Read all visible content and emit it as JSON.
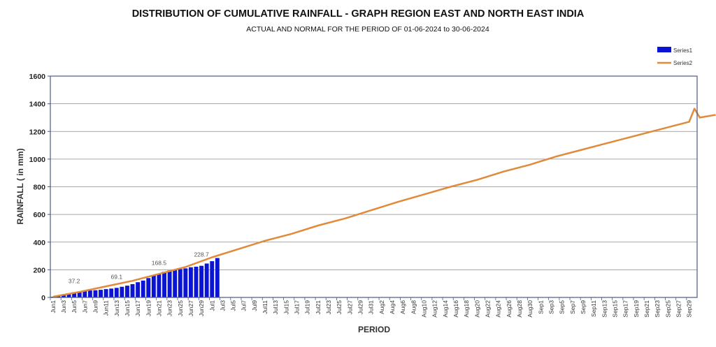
{
  "chart_data": {
    "type": "bar+line",
    "title": "DISTRIBUTION OF CUMULATIVE RAINFALL - GRAPH REGION EAST AND NORTH EAST INDIA",
    "subtitle": "ACTUAL AND NORMAL FOR THE PERIOD OF 01-06-2024 to 30-06-2024",
    "xlabel": "PERIOD",
    "ylabel": "RAINFALL ( in mm)",
    "ylim": [
      0,
      1600
    ],
    "yticks": [
      0,
      200,
      400,
      600,
      800,
      1000,
      1200,
      1400,
      1600
    ],
    "grid": true,
    "legend_position": "top-right",
    "x_tick_labels": [
      "Jun1",
      "Jun3",
      "Jun5",
      "Jun7",
      "Jun9",
      "Jun11",
      "Jun13",
      "Jun15",
      "Jun17",
      "Jun19",
      "Jun21",
      "Jun23",
      "Jun25",
      "Jun27",
      "Jun29",
      "Jul1",
      "Jul3",
      "Jul5",
      "Jul7",
      "Jul9",
      "Jul11",
      "Jul13",
      "Jul15",
      "Jul17",
      "Jul19",
      "Jul21",
      "Jul23",
      "Jul25",
      "Jul27",
      "Jul29",
      "Jul31",
      "Aug2",
      "Aug4",
      "Aug6",
      "Aug8",
      "Aug10",
      "Aug12",
      "Aug14",
      "Aug16",
      "Aug18",
      "Aug20",
      "Aug22",
      "Aug24",
      "Aug26",
      "Aug28",
      "Aug30",
      "Sep1",
      "Sep3",
      "Sep5",
      "Sep7",
      "Sep9",
      "Sep11",
      "Sep13",
      "Sep15",
      "Sep17",
      "Sep19",
      "Sep21",
      "Sep23",
      "Sep25",
      "Sep27",
      "Sep29"
    ],
    "series": [
      {
        "name": "Series1",
        "kind": "bar",
        "color": "#0a14d2",
        "values": [
          5,
          12,
          20,
          28,
          37.2,
          42,
          47,
          50,
          52,
          55,
          60,
          64,
          69.1,
          77,
          85,
          96,
          110,
          122,
          140,
          160,
          168.5,
          185,
          195,
          200,
          205,
          210,
          218,
          222,
          228.7,
          245,
          262,
          285
        ]
      },
      {
        "name": "Series2",
        "kind": "line",
        "color": "#e08a3a",
        "values": [
          [
            0,
            5
          ],
          [
            5,
            40
          ],
          [
            10,
            80
          ],
          [
            15,
            120
          ],
          [
            20,
            170
          ],
          [
            25,
            220
          ],
          [
            30,
            290
          ],
          [
            35,
            350
          ],
          [
            40,
            410
          ],
          [
            45,
            460
          ],
          [
            50,
            520
          ],
          [
            55,
            570
          ],
          [
            60,
            630
          ],
          [
            65,
            690
          ],
          [
            70,
            745
          ],
          [
            75,
            800
          ],
          [
            80,
            850
          ],
          [
            85,
            910
          ],
          [
            90,
            960
          ],
          [
            95,
            1020
          ],
          [
            100,
            1070
          ],
          [
            105,
            1120
          ],
          [
            110,
            1170
          ],
          [
            115,
            1220
          ],
          [
            120,
            1270
          ],
          [
            125,
            1320
          ],
          [
            122,
            1300
          ],
          [
            121,
            1365
          ]
        ]
      }
    ],
    "data_labels": [
      {
        "series": "Series1",
        "index": 4,
        "text": "37.2"
      },
      {
        "series": "Series1",
        "index": 12,
        "text": "69.1"
      },
      {
        "series": "Series1",
        "index": 20,
        "text": "168.5"
      },
      {
        "series": "Series1",
        "index": 28,
        "text": "228.7"
      }
    ]
  }
}
